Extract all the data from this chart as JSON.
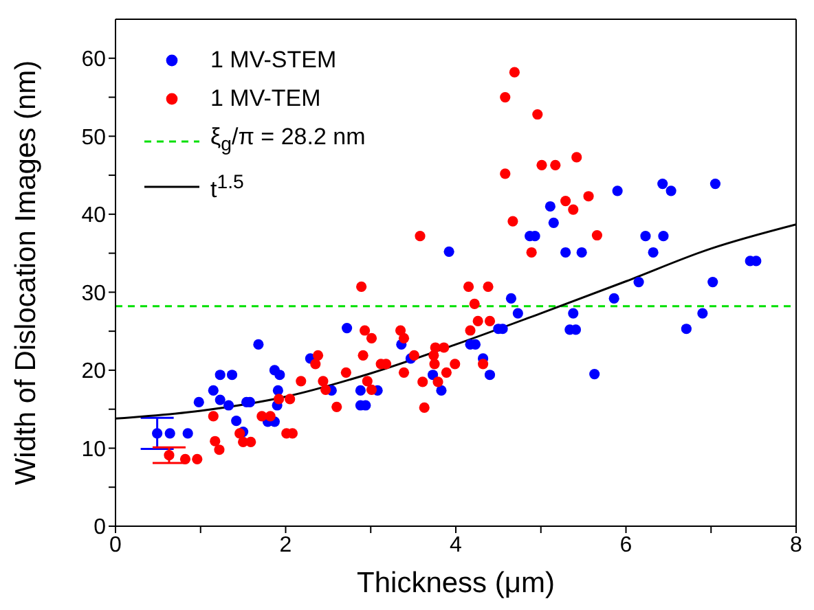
{
  "chart_data": {
    "type": "scatter",
    "xlabel": "Thickness (μm)",
    "ylabel": "Width of Dislocation Images (nm)",
    "xlim": [
      0,
      8
    ],
    "xticks": [
      0,
      {
        "value": 1,
        "label": null
      },
      2,
      {
        "value": 3,
        "label": null
      },
      4,
      {
        "value": 5,
        "label": null
      },
      6,
      {
        "value": 7,
        "label": null
      },
      8
    ],
    "ylim": [
      0,
      65
    ],
    "yticks": [
      0,
      {
        "value": 5,
        "label": null
      },
      10,
      {
        "value": 15,
        "label": null
      },
      20,
      {
        "value": 25,
        "label": null
      },
      30,
      {
        "value": 35,
        "label": null
      },
      40,
      {
        "value": 45,
        "label": null
      },
      50,
      {
        "value": 55,
        "label": null
      },
      60
    ],
    "grid": false,
    "legend": "top left",
    "marker": "circle",
    "ref_lines": [
      {
        "axis": "y",
        "value": 28.2,
        "label": "ξ$_{g}$/π = 28.2 nm",
        "color": "#00e000",
        "line_style": "dashed"
      }
    ],
    "series": [
      {
        "name": "1 MV-STEM",
        "color": "#0000ff",
        "x": [
          0.49,
          0.64,
          0.85,
          0.98,
          1.15,
          1.23,
          1.37,
          1.23,
          1.33,
          1.42,
          1.5,
          1.54,
          1.58,
          1.68,
          1.87,
          1.93,
          1.91,
          1.9,
          1.79,
          1.87,
          2.29,
          2.72,
          2.54,
          2.88,
          2.88,
          2.94,
          3.08,
          3.36,
          3.47,
          3.73,
          3.83,
          3.92,
          4.17,
          4.23,
          4.32,
          4.4,
          4.5,
          4.55,
          4.65,
          4.73,
          4.87,
          4.93,
          5.15,
          5.11,
          5.29,
          5.48,
          5.9,
          5.38,
          5.34,
          5.41,
          5.63,
          5.86,
          6.15,
          6.23,
          6.32,
          6.44,
          6.43,
          6.53,
          6.71,
          6.9,
          7.02,
          7.05,
          7.46,
          7.53
        ],
        "values": [
          11.9,
          11.9,
          11.9,
          15.9,
          17.4,
          19.4,
          19.4,
          16.2,
          15.5,
          13.5,
          12.1,
          15.9,
          15.9,
          23.3,
          20,
          19.4,
          17.4,
          15.5,
          13.4,
          13.4,
          21.5,
          25.4,
          17.4,
          17.4,
          15.5,
          15.5,
          17.4,
          23.3,
          21.5,
          19.4,
          17.4,
          35.2,
          23.3,
          23.3,
          21.5,
          19.4,
          25.3,
          25.3,
          29.2,
          27.3,
          37.2,
          37.2,
          38.9,
          41,
          35.1,
          35.1,
          43,
          27.3,
          25.2,
          25.2,
          19.5,
          29.2,
          31.3,
          37.2,
          35.1,
          37.2,
          43.9,
          43,
          25.3,
          27.3,
          31.3,
          43.9,
          34,
          34
        ],
        "errors": [
          2,
          null,
          null,
          null,
          null,
          null,
          null,
          null,
          null,
          null,
          null,
          null,
          null,
          null,
          null,
          null,
          null,
          null,
          null,
          null,
          null,
          null,
          null,
          null,
          null,
          null,
          null,
          null,
          null,
          null,
          null,
          null,
          null,
          null,
          null,
          null,
          null,
          null,
          null,
          null,
          null,
          null,
          null,
          null,
          null,
          null,
          null,
          null,
          null,
          null,
          null,
          null,
          null,
          null,
          null,
          null,
          null,
          null,
          null,
          null,
          null,
          null,
          null,
          null
        ]
      },
      {
        "name": "1 MV-TEM",
        "color": "#ff0000",
        "x": [
          0.63,
          0.82,
          0.96,
          1.15,
          1.17,
          1.22,
          1.46,
          1.5,
          1.59,
          1.72,
          1.82,
          1.92,
          2.01,
          2.08,
          2.05,
          2.18,
          2.35,
          2.38,
          2.44,
          2.47,
          2.6,
          2.71,
          2.89,
          2.93,
          3.01,
          2.91,
          2.96,
          3.01,
          3.12,
          3.18,
          3.35,
          3.39,
          3.39,
          3.51,
          3.58,
          3.61,
          3.63,
          3.76,
          3.86,
          3.74,
          3.75,
          3.79,
          3.89,
          3.99,
          4.15,
          4.38,
          4.22,
          4.17,
          4.26,
          4.4,
          4.32,
          4.67,
          4.89,
          4.96,
          5.01,
          5.17,
          5.42,
          5.29,
          5.38,
          5.56,
          5.66,
          4.69,
          4.58,
          4.58
        ],
        "values": [
          9.1,
          8.6,
          8.6,
          14.1,
          10.9,
          9.8,
          11.9,
          10.8,
          10.8,
          14.1,
          14.1,
          16.3,
          11.9,
          11.9,
          16.3,
          18.6,
          20.8,
          21.9,
          18.6,
          17.5,
          15.3,
          19.7,
          30.7,
          25.1,
          24.1,
          21.9,
          18.6,
          17.5,
          20.8,
          20.8,
          25.1,
          24.1,
          19.7,
          21.9,
          37.2,
          18.5,
          15.2,
          22.9,
          22.9,
          21.9,
          20.8,
          18.5,
          19.7,
          20.8,
          30.7,
          30.7,
          28.5,
          25.1,
          26.3,
          26.3,
          20.8,
          39.1,
          35.1,
          52.8,
          46.3,
          46.3,
          47.3,
          41.7,
          40.6,
          42.3,
          37.3,
          58.2,
          55,
          45.2
        ],
        "errors": [
          1,
          null,
          null,
          null,
          null,
          null,
          null,
          null,
          null,
          null,
          null,
          null,
          null,
          null,
          null,
          null,
          null,
          null,
          null,
          null,
          null,
          null,
          null,
          null,
          null,
          null,
          null,
          null,
          null,
          null,
          null,
          null,
          null,
          null,
          null,
          null,
          null,
          null,
          null,
          null,
          null,
          null,
          null,
          null,
          null,
          null,
          null,
          null,
          null,
          null,
          null,
          null,
          null,
          null,
          null,
          null,
          null,
          null,
          null,
          null,
          null,
          null,
          null,
          null
        ]
      },
      {
        "name": "t$^{1.5}$",
        "type": "line",
        "color": "#000000",
        "marker": "none",
        "line_style": "solid",
        "x": [
          0,
          1,
          2,
          3,
          4,
          5,
          6,
          7,
          8
        ],
        "values": [
          13.8,
          14.8,
          16.6,
          19.6,
          23.3,
          27.3,
          31.4,
          35.6,
          38.7
        ]
      }
    ]
  }
}
